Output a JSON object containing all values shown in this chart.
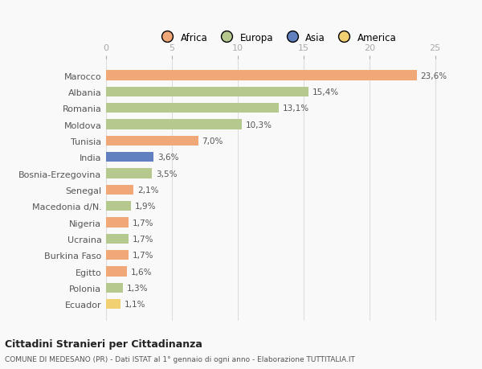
{
  "countries": [
    "Marocco",
    "Albania",
    "Romania",
    "Moldova",
    "Tunisia",
    "India",
    "Bosnia-Erzegovina",
    "Senegal",
    "Macedonia d/N.",
    "Nigeria",
    "Ucraina",
    "Burkina Faso",
    "Egitto",
    "Polonia",
    "Ecuador"
  ],
  "values": [
    23.6,
    15.4,
    13.1,
    10.3,
    7.0,
    3.6,
    3.5,
    2.1,
    1.9,
    1.7,
    1.7,
    1.7,
    1.6,
    1.3,
    1.1
  ],
  "labels": [
    "23,6%",
    "15,4%",
    "13,1%",
    "10,3%",
    "7,0%",
    "3,6%",
    "3,5%",
    "2,1%",
    "1,9%",
    "1,7%",
    "1,7%",
    "1,7%",
    "1,6%",
    "1,3%",
    "1,1%"
  ],
  "continents": [
    "Africa",
    "Europa",
    "Europa",
    "Europa",
    "Africa",
    "Asia",
    "Europa",
    "Africa",
    "Europa",
    "Africa",
    "Europa",
    "Africa",
    "Africa",
    "Europa",
    "America"
  ],
  "colors": {
    "Africa": "#F0A878",
    "Europa": "#B5C98E",
    "Asia": "#6080C0",
    "America": "#F0D070"
  },
  "legend_order": [
    "Africa",
    "Europa",
    "Asia",
    "America"
  ],
  "xlim": [
    0,
    26
  ],
  "xticks": [
    0,
    5,
    10,
    15,
    20,
    25
  ],
  "title1": "Cittadini Stranieri per Cittadinanza",
  "title2": "COMUNE DI MEDESANO (PR) - Dati ISTAT al 1° gennaio di ogni anno - Elaborazione TUTTITALIA.IT",
  "background_color": "#f9f9f9",
  "bar_height": 0.6
}
